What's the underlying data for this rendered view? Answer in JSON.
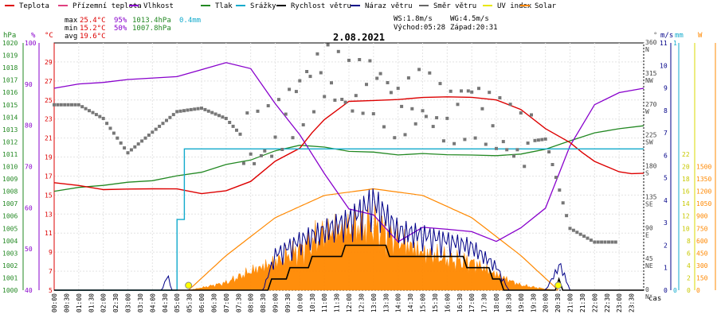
{
  "legend": [
    {
      "label": "Teplota",
      "color": "#dd0000"
    },
    {
      "label": "Přízemní teplota",
      "color": "#e0407f"
    },
    {
      "label": "Vlhkost",
      "color": "#8800cc"
    },
    {
      "label": "Tlak",
      "color": "#228822"
    },
    {
      "label": "Srážky",
      "color": "#11aacc"
    },
    {
      "label": "Rychlost větru",
      "color": "#000000"
    },
    {
      "label": "Náraz větru",
      "color": "#000088"
    },
    {
      "label": "Směr větru",
      "color": "#666666"
    },
    {
      "label": "UV index",
      "color": "#e8e800"
    },
    {
      "label": "Solar",
      "color": "#ff8800"
    }
  ],
  "stats": {
    "max_label": "max",
    "max_temp": "25.4°C",
    "max_hum": "95%",
    "max_press": "1013.4hPa",
    "max_rain": "0.4mm",
    "min_label": "min",
    "min_temp": "15.2°C",
    "min_hum": "50%",
    "min_press": "1007.8hPa",
    "avg_label": "avg",
    "avg_temp": "19.6°C",
    "ws": "WS:1.8m/s",
    "wg": "WG:4.5m/s",
    "sunrise": "Východ:05:28",
    "sunset": "Západ:20:31"
  },
  "title": "2.08.2021",
  "axis_units": {
    "hpa": "hPa",
    "pct": "%",
    "degc": "°C",
    "dir": "°",
    "ms": "m/s",
    "mm": "mm",
    "w": "W",
    "time": "čas"
  },
  "chart_data": {
    "type": "line",
    "title": "2.08.2021",
    "x_unit": "hours 0-24",
    "time_labels": [
      "00:00",
      "00:30",
      "01:00",
      "01:30",
      "02:00",
      "02:30",
      "03:00",
      "03:30",
      "04:00",
      "04:30",
      "05:00",
      "05:30",
      "06:00",
      "06:30",
      "07:00",
      "07:30",
      "08:00",
      "08:30",
      "09:00",
      "09:30",
      "10:00",
      "10:30",
      "11:00",
      "11:30",
      "12:00",
      "12:30",
      "13:00",
      "13:30",
      "14:00",
      "14:30",
      "15:00",
      "15:30",
      "16:00",
      "16:30",
      "17:00",
      "17:30",
      "18:00",
      "18:30",
      "19:00",
      "19:30",
      "20:00",
      "20:30",
      "21:00",
      "21:30",
      "22:00",
      "22:30",
      "23:00",
      "23:30"
    ],
    "axes": {
      "pressure": {
        "min": 1000,
        "max": 1020,
        "ticks": [
          "1000",
          "1001",
          "1002",
          "1003",
          "1004",
          "1005",
          "1006",
          "1007",
          "1008",
          "1009",
          "1010",
          "1011",
          "1012",
          "1013",
          "1014",
          "1015",
          "1016",
          "1017",
          "1018",
          "1019",
          "1020"
        ]
      },
      "humidity": {
        "min": 40,
        "max": 100,
        "ticks": [
          "40",
          "50",
          "60",
          "70",
          "80",
          "90",
          "100"
        ]
      },
      "temperature": {
        "min": 5,
        "max": 31,
        "ticks": [
          "5",
          "7",
          "9",
          "11",
          "13",
          "15",
          "17",
          "19",
          "21",
          "23",
          "25",
          "27",
          "29"
        ]
      },
      "direction": {
        "min": 0,
        "max": 360,
        "ticks": [
          "0",
          "45",
          "90",
          "135",
          "180",
          "225",
          "270",
          "315",
          "360"
        ],
        "labels": [
          "N",
          "NE",
          "E",
          "SE",
          "S",
          "SW",
          "W",
          "NW",
          "N"
        ]
      },
      "wind": {
        "min": 0,
        "max": 11,
        "ticks": [
          "0",
          "1",
          "2",
          "3",
          "4",
          "5",
          "6",
          "7",
          "8",
          "9",
          "10",
          "11"
        ]
      },
      "rain": {
        "min": 0,
        "max": 1,
        "ticks": [
          "0",
          "1"
        ]
      },
      "solar": {
        "min": 0,
        "max": 1500,
        "ticks": [
          "0",
          "150",
          "300",
          "450",
          "600",
          "750",
          "900",
          "1050",
          "1200",
          "1350",
          "1500"
        ]
      },
      "uv_ticks": [
        "0",
        "2",
        "4",
        "6",
        "8",
        "10",
        "12",
        "14",
        "16",
        "18",
        "20",
        "22"
      ]
    },
    "series": [
      {
        "name": "Teplota",
        "axis": "temperature",
        "color": "#dd0000",
        "points": [
          [
            0,
            16.3
          ],
          [
            1,
            16.0
          ],
          [
            2,
            15.6
          ],
          [
            3,
            15.6
          ],
          [
            4,
            15.7
          ],
          [
            5,
            15.6
          ],
          [
            6,
            15.2
          ],
          [
            7,
            15.4
          ],
          [
            8,
            16.5
          ],
          [
            9,
            18.5
          ],
          [
            10,
            20.0
          ],
          [
            10.5,
            21.5
          ],
          [
            11,
            23.0
          ],
          [
            12,
            24.8
          ],
          [
            13,
            25.0
          ],
          [
            14,
            25.0
          ],
          [
            15,
            25.3
          ],
          [
            16,
            25.3
          ],
          [
            17,
            25.3
          ],
          [
            18,
            25.0
          ],
          [
            19,
            24.0
          ],
          [
            20,
            22.0
          ],
          [
            21,
            20.5
          ],
          [
            21.5,
            19.5
          ],
          [
            22,
            18.5
          ],
          [
            23,
            17.5
          ],
          [
            23.5,
            17.2
          ],
          [
            24,
            17.3
          ]
        ]
      },
      {
        "name": "Vlhkost",
        "axis": "humidity",
        "color": "#8800cc",
        "points": [
          [
            0,
            89
          ],
          [
            1,
            90
          ],
          [
            2,
            90.5
          ],
          [
            3,
            91
          ],
          [
            5,
            92
          ],
          [
            7,
            95
          ],
          [
            8,
            94
          ],
          [
            9,
            85
          ],
          [
            10,
            78
          ],
          [
            11,
            68
          ],
          [
            12,
            60
          ],
          [
            13,
            58
          ],
          [
            14,
            52
          ],
          [
            15,
            55
          ],
          [
            16,
            55
          ],
          [
            17,
            54
          ],
          [
            18,
            52
          ],
          [
            19,
            55
          ],
          [
            20,
            60
          ],
          [
            21,
            75
          ],
          [
            22,
            85
          ],
          [
            23,
            88
          ],
          [
            24,
            89
          ]
        ]
      },
      {
        "name": "Tlak",
        "axis": "pressure",
        "color": "#228822",
        "points": [
          [
            0,
            1008.0
          ],
          [
            1,
            1008.3
          ],
          [
            2,
            1008.5
          ],
          [
            3,
            1008.7
          ],
          [
            4,
            1008.9
          ],
          [
            5,
            1009.2
          ],
          [
            6,
            1009.6
          ],
          [
            7,
            1010.1
          ],
          [
            8,
            1010.6
          ],
          [
            9,
            1011.2
          ],
          [
            10,
            1011.8
          ],
          [
            11,
            1011.5
          ],
          [
            12,
            1011.3
          ],
          [
            13,
            1011.1
          ],
          [
            14,
            1011.0
          ],
          [
            15,
            1011.0
          ],
          [
            16,
            1011.0
          ],
          [
            17,
            1010.9
          ],
          [
            18,
            1010.9
          ],
          [
            19,
            1011.0
          ],
          [
            20,
            1011.4
          ],
          [
            21,
            1012.1
          ],
          [
            22,
            1012.7
          ],
          [
            23,
            1013.1
          ],
          [
            24,
            1013.3
          ]
        ]
      },
      {
        "name": "Srážky",
        "axis": "rain",
        "color": "#11aacc",
        "points": [
          [
            0,
            0
          ],
          [
            4.9,
            0
          ],
          [
            5.0,
            0.2
          ],
          [
            5.2,
            0.2
          ],
          [
            5.3,
            0.4
          ],
          [
            24,
            0.4
          ]
        ]
      },
      {
        "name": "Rychlost větru",
        "axis": "wind",
        "color": "#000000",
        "points": [
          [
            0,
            0
          ],
          [
            8.5,
            0
          ],
          [
            9,
            0.5
          ],
          [
            10,
            1.0
          ],
          [
            11,
            1.5
          ],
          [
            12,
            1.8
          ],
          [
            13,
            2.0
          ],
          [
            14,
            1.6
          ],
          [
            15,
            1.5
          ],
          [
            16,
            1.4
          ],
          [
            17,
            1.2
          ],
          [
            18,
            0.6
          ],
          [
            18.5,
            0
          ],
          [
            20,
            0
          ],
          [
            20.5,
            0.3
          ],
          [
            21,
            0
          ],
          [
            24,
            0
          ]
        ]
      },
      {
        "name": "Náraz větru",
        "axis": "wind",
        "color": "#000088",
        "points": [
          [
            0,
            0
          ],
          [
            4.4,
            0
          ],
          [
            4.6,
            0.8
          ],
          [
            4.8,
            0
          ],
          [
            8.5,
            0
          ],
          [
            9,
            1.8
          ],
          [
            10,
            2.5
          ],
          [
            11,
            3.0
          ],
          [
            12,
            3.5
          ],
          [
            13,
            4.5
          ],
          [
            14,
            3.0
          ],
          [
            15,
            2.8
          ],
          [
            16,
            2.5
          ],
          [
            17,
            2.2
          ],
          [
            18,
            1.2
          ],
          [
            18.5,
            0
          ],
          [
            20,
            0
          ],
          [
            20.6,
            1.3
          ],
          [
            21,
            0
          ],
          [
            24,
            0
          ]
        ]
      },
      {
        "name": "Solar",
        "axis": "solar",
        "color": "#ff8800",
        "points": [
          [
            5.5,
            0
          ],
          [
            7,
            120
          ],
          [
            8,
            300
          ],
          [
            9,
            450
          ],
          [
            10,
            650
          ],
          [
            11,
            900
          ],
          [
            12,
            1000
          ],
          [
            13,
            1050
          ],
          [
            14,
            800
          ],
          [
            15,
            600
          ],
          [
            16,
            500
          ],
          [
            17,
            450
          ],
          [
            18,
            250
          ],
          [
            19,
            80
          ],
          [
            20,
            20
          ],
          [
            20.5,
            0
          ]
        ]
      }
    ],
    "solar_theoretical": [
      [
        5.47,
        0
      ],
      [
        7,
        420
      ],
      [
        9,
        880
      ],
      [
        11,
        1150
      ],
      [
        13.0,
        1230
      ],
      [
        15,
        1150
      ],
      [
        17,
        880
      ],
      [
        19,
        420
      ],
      [
        20.52,
        0
      ]
    ],
    "uv_markers": [
      [
        5.47,
        0
      ],
      [
        20.52,
        0
      ]
    ],
    "direction_points": [
      [
        0,
        270
      ],
      [
        1,
        270
      ],
      [
        2,
        250
      ],
      [
        3,
        200
      ],
      [
        4,
        230
      ],
      [
        5,
        260
      ],
      [
        6,
        265
      ],
      [
        7,
        250
      ],
      [
        8,
        210
      ],
      [
        9,
        230
      ],
      [
        10,
        280
      ],
      [
        11,
        320
      ],
      [
        12,
        290
      ],
      [
        13,
        300
      ],
      [
        14,
        260
      ],
      [
        15,
        280
      ],
      [
        16,
        250
      ],
      [
        17,
        270
      ],
      [
        18,
        240
      ],
      [
        19,
        215
      ],
      [
        20,
        220
      ],
      [
        21,
        90
      ],
      [
        22,
        70
      ],
      [
        23,
        70
      ]
    ]
  }
}
